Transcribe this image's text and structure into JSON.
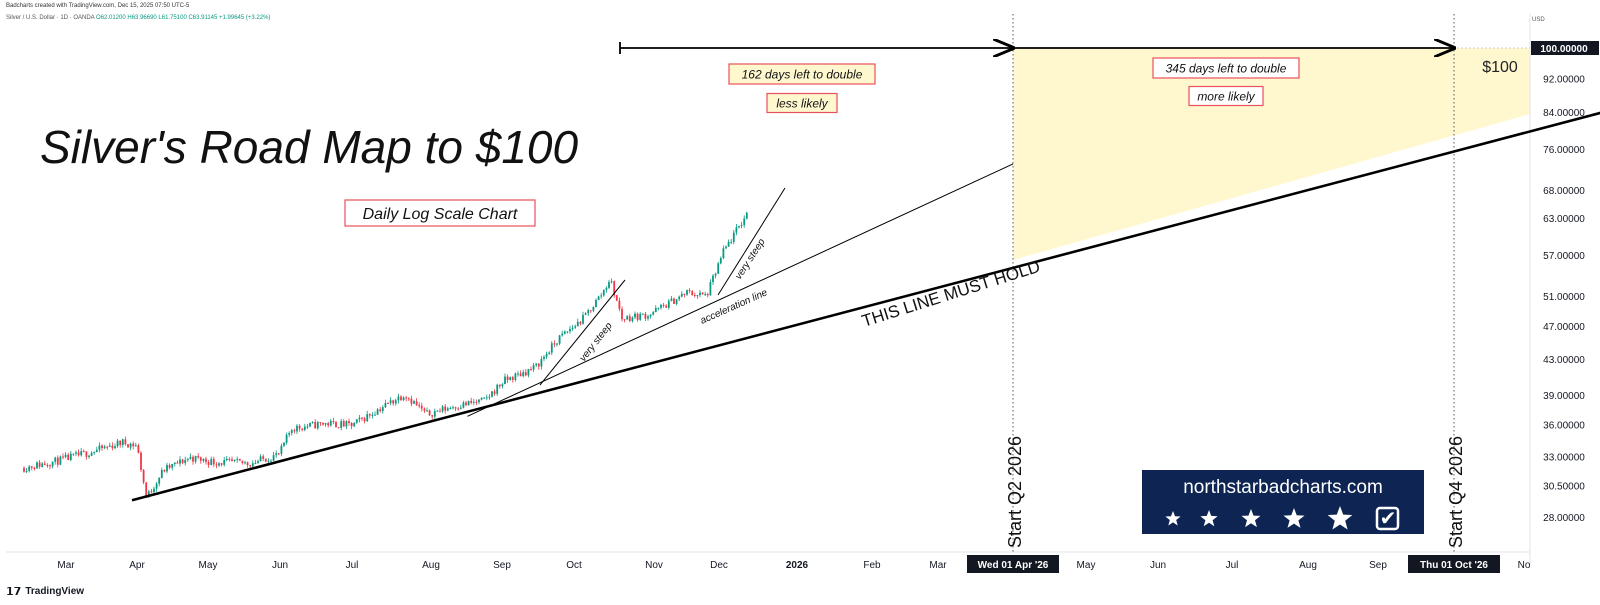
{
  "header": {
    "caption": "Badcharts created with TradingView.com, Dec 15, 2025 07:50 UTC-5",
    "instrument": "Silver / U.S. Dollar · 1D · OANDA",
    "ohlc": "O62.01200 H63.96690 L61.75100 C63.91145 +1.99645 (+3.22%)",
    "currency": "USD"
  },
  "footer": {
    "brand": "TradingView",
    "brand_mark": "𝟭𝟳"
  },
  "annotations": {
    "title": "Silver's Road Map to $100",
    "subtitle": "Daily Log Scale Chart",
    "left_days": "162 days left to double",
    "left_likelihood": "less likely",
    "right_days": "345 days left to double",
    "right_likelihood": "more likely",
    "target": "$100",
    "must_hold": "THIS LINE MUST HOLD",
    "acceleration": "acceleration line",
    "very_steep": "very steep",
    "start_q2": "Start Q2  2026",
    "start_q4": "Start Q4  2026"
  },
  "badge": {
    "site": "northstarbadcharts.com",
    "stars": 5,
    "check": "✔"
  },
  "colors": {
    "up": "#089981",
    "down": "#f23645",
    "zone_fill": "#fff8cf",
    "badge_bg": "#0e2554",
    "label_border": "#e8505b"
  },
  "chart_data": {
    "type": "line",
    "scale": "log",
    "price_labels": [
      "100.00000",
      "92.00000",
      "84.00000",
      "76.00000",
      "68.00000",
      "63.00000",
      "57.00000",
      "51.00000",
      "47.00000",
      "43.00000",
      "39.00000",
      "36.00000",
      "33.00000",
      "30.50000",
      "28.00000"
    ],
    "x_labels": [
      "Mar",
      "Apr",
      "May",
      "Jun",
      "Jul",
      "Aug",
      "Sep",
      "Oct",
      "Nov",
      "Dec",
      "2026",
      "Feb",
      "Mar",
      "Wed 01 Apr '26",
      "May",
      "Jun",
      "Jul",
      "Aug",
      "Sep",
      "Thu 01 Oct '26",
      "No"
    ],
    "highlighted_x_labels": [
      "Wed 01 Apr '26",
      "Thu 01 Oct '26"
    ],
    "ylim": [
      26.5,
      104
    ],
    "price_path": [
      [
        "2025-02-15",
        32.0
      ],
      [
        "2025-03-01",
        32.6
      ],
      [
        "2025-03-15",
        33.4
      ],
      [
        "2025-03-28",
        34.3
      ],
      [
        "2025-04-03",
        34.0
      ],
      [
        "2025-04-07",
        29.5
      ],
      [
        "2025-04-14",
        31.8
      ],
      [
        "2025-04-25",
        32.9
      ],
      [
        "2025-05-05",
        32.5
      ],
      [
        "2025-05-20",
        32.4
      ],
      [
        "2025-06-01",
        33.2
      ],
      [
        "2025-06-06",
        35.6
      ],
      [
        "2025-06-20",
        36.1
      ],
      [
        "2025-07-01",
        35.9
      ],
      [
        "2025-07-14",
        37.8
      ],
      [
        "2025-07-23",
        39.1
      ],
      [
        "2025-08-01",
        37.0
      ],
      [
        "2025-08-12",
        37.8
      ],
      [
        "2025-08-25",
        38.4
      ],
      [
        "2025-09-02",
        40.5
      ],
      [
        "2025-09-15",
        42.0
      ],
      [
        "2025-09-25",
        45.5
      ],
      [
        "2025-10-05",
        48.0
      ],
      [
        "2025-10-13",
        51.5
      ],
      [
        "2025-10-16",
        53.5
      ],
      [
        "2025-10-21",
        48.0
      ],
      [
        "2025-11-01",
        48.5
      ],
      [
        "2025-11-12",
        50.5
      ],
      [
        "2025-11-17",
        51.5
      ],
      [
        "2025-11-25",
        51.0
      ],
      [
        "2025-12-02",
        57.5
      ],
      [
        "2025-12-12",
        63.9
      ]
    ],
    "support_line": [
      [
        "2025-04-01",
        29.3
      ],
      [
        "2026-12-15",
        86.0
      ]
    ],
    "acceleration_line": [
      [
        "2025-08-18",
        36.8
      ],
      [
        "2026-04-01",
        73.0
      ]
    ]
  }
}
